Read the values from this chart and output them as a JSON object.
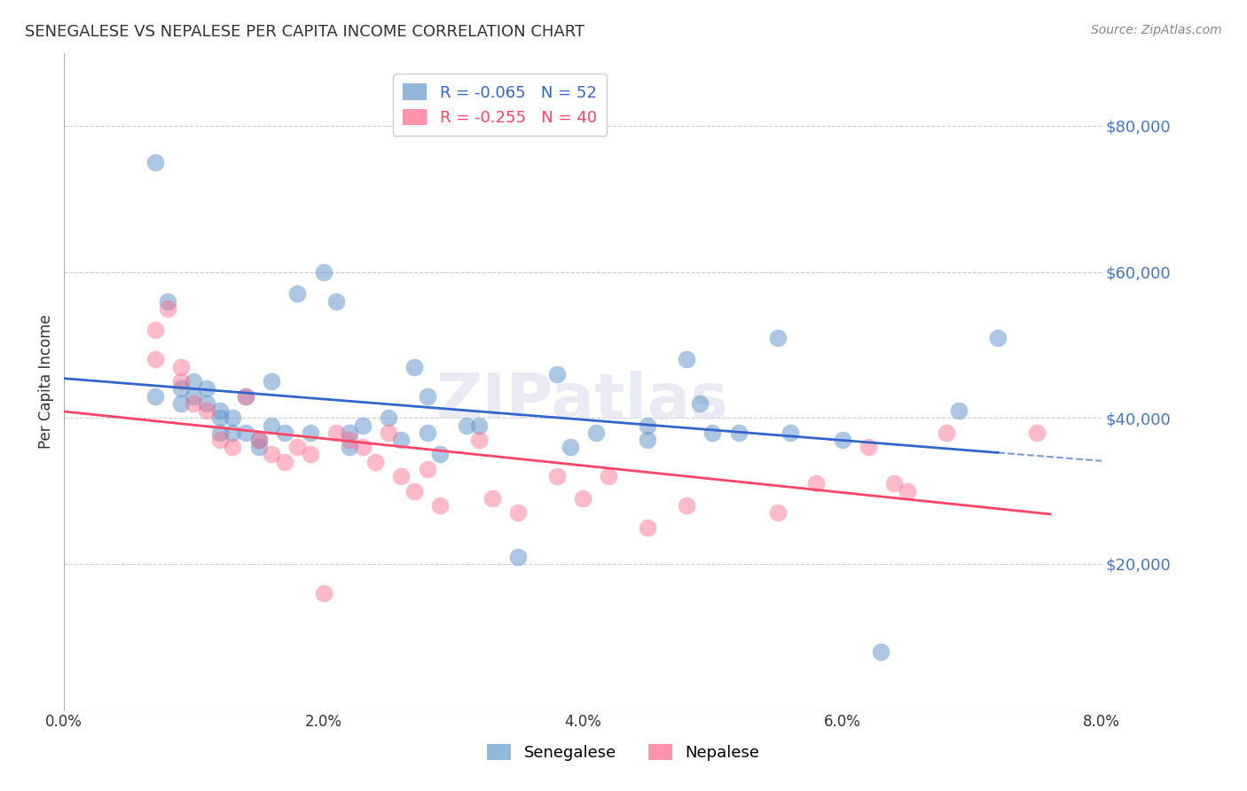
{
  "title": "SENEGALESE VS NEPALESE PER CAPITA INCOME CORRELATION CHART",
  "source": "Source: ZipAtlas.com",
  "ylabel": "Per Capita Income",
  "xlabel_ticks": [
    "0.0%",
    "2.0%",
    "4.0%",
    "6.0%",
    "8.0%"
  ],
  "xlabel_vals": [
    0.0,
    0.02,
    0.04,
    0.06,
    0.08
  ],
  "ylim": [
    0,
    90000
  ],
  "xlim": [
    0.0,
    0.08
  ],
  "ytick_vals": [
    0,
    20000,
    40000,
    60000,
    80000
  ],
  "ytick_labels": [
    "",
    "$20,000",
    "$40,000",
    "$60,000",
    "$80,000"
  ],
  "background_color": "#ffffff",
  "grid_color": "#cccccc",
  "blue_color": "#6699cc",
  "pink_color": "#ff6688",
  "blue_line_color": "#3366cc",
  "pink_line_color": "#ff4466",
  "watermark": "ZIPatlas",
  "legend_blue_R": "R = -0.065",
  "legend_blue_N": "52",
  "legend_pink_R": "R = -0.255",
  "legend_pink_N": "40",
  "senegalese_x": [
    0.007,
    0.007,
    0.008,
    0.009,
    0.009,
    0.01,
    0.01,
    0.011,
    0.011,
    0.012,
    0.012,
    0.012,
    0.013,
    0.013,
    0.014,
    0.014,
    0.015,
    0.015,
    0.016,
    0.016,
    0.017,
    0.018,
    0.019,
    0.02,
    0.021,
    0.022,
    0.022,
    0.023,
    0.025,
    0.026,
    0.027,
    0.028,
    0.028,
    0.029,
    0.031,
    0.032,
    0.035,
    0.038,
    0.039,
    0.041,
    0.045,
    0.045,
    0.048,
    0.049,
    0.05,
    0.052,
    0.055,
    0.056,
    0.06,
    0.063,
    0.069,
    0.072
  ],
  "senegalese_y": [
    75000,
    43000,
    56000,
    44000,
    42000,
    45000,
    43000,
    42000,
    44000,
    41000,
    40000,
    38000,
    40000,
    38000,
    43000,
    38000,
    37000,
    36000,
    45000,
    39000,
    38000,
    57000,
    38000,
    60000,
    56000,
    36000,
    38000,
    39000,
    40000,
    37000,
    47000,
    38000,
    43000,
    35000,
    39000,
    39000,
    21000,
    46000,
    36000,
    38000,
    37000,
    39000,
    48000,
    42000,
    38000,
    38000,
    51000,
    38000,
    37000,
    8000,
    41000,
    51000
  ],
  "nepalese_x": [
    0.007,
    0.007,
    0.008,
    0.009,
    0.009,
    0.01,
    0.011,
    0.012,
    0.013,
    0.014,
    0.015,
    0.016,
    0.017,
    0.018,
    0.019,
    0.02,
    0.021,
    0.022,
    0.023,
    0.024,
    0.025,
    0.026,
    0.027,
    0.028,
    0.029,
    0.032,
    0.033,
    0.035,
    0.038,
    0.04,
    0.042,
    0.045,
    0.048,
    0.055,
    0.058,
    0.062,
    0.064,
    0.065,
    0.068,
    0.075
  ],
  "nepalese_y": [
    52000,
    48000,
    55000,
    47000,
    45000,
    42000,
    41000,
    37000,
    36000,
    43000,
    37000,
    35000,
    34000,
    36000,
    35000,
    16000,
    38000,
    37000,
    36000,
    34000,
    38000,
    32000,
    30000,
    33000,
    28000,
    37000,
    29000,
    27000,
    32000,
    29000,
    32000,
    25000,
    28000,
    27000,
    31000,
    36000,
    31000,
    30000,
    38000,
    38000
  ]
}
